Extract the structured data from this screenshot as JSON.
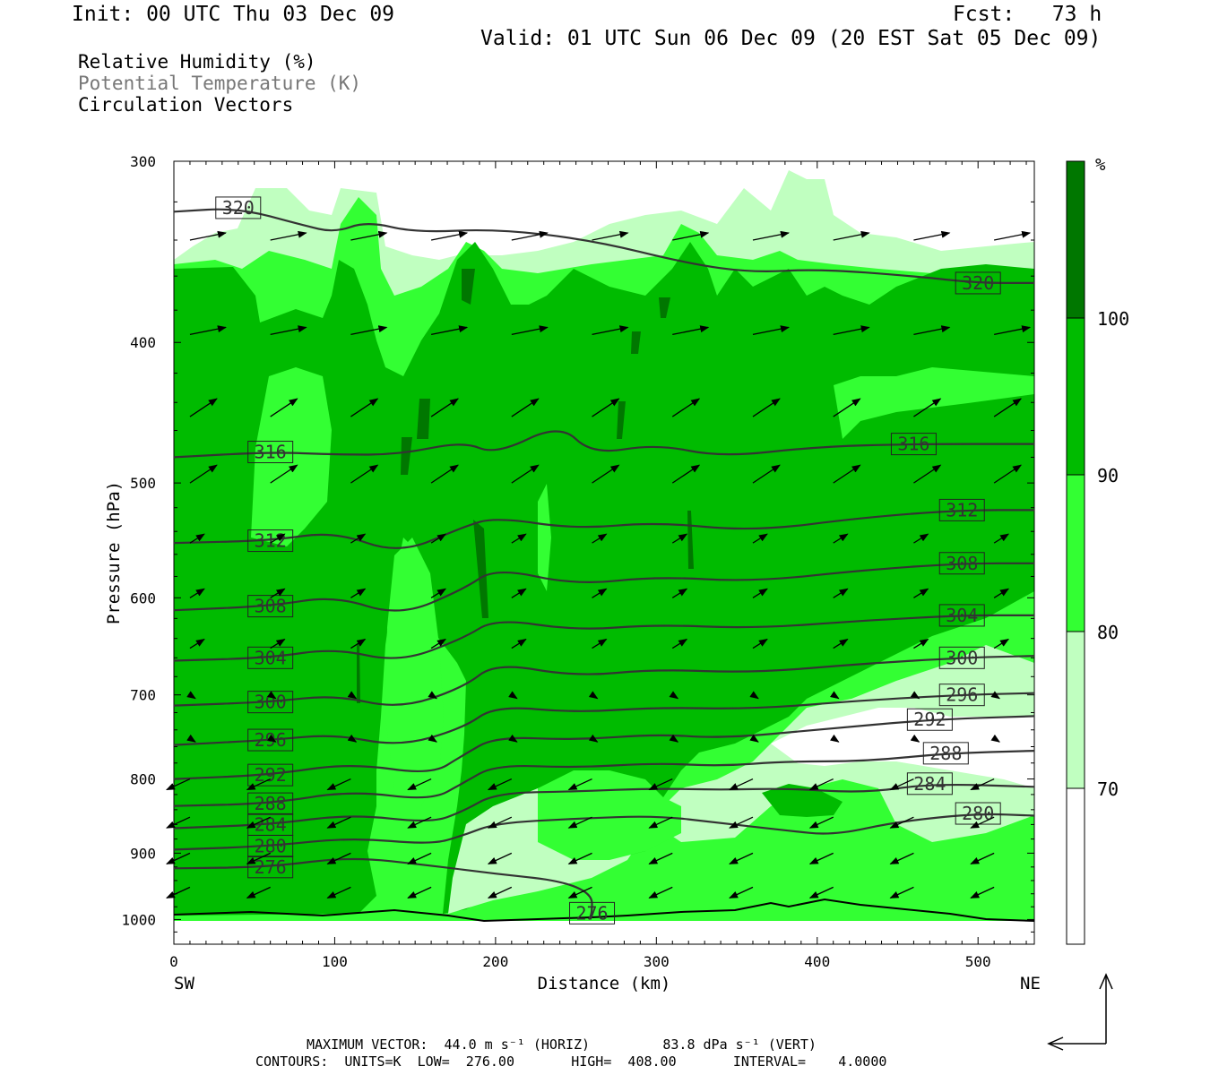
{
  "header": {
    "init": "Init: 00 UTC Thu 03 Dec 09",
    "fcst": "Fcst:   73 h",
    "valid": "Valid: 01 UTC Sun 06 Dec 09 (20 EST Sat 05 Dec 09)"
  },
  "legend": {
    "rh": "Relative Humidity (%)",
    "theta": "Potential Temperature (K)",
    "vectors": "Circulation Vectors"
  },
  "footer": {
    "max_vector": "MAXIMUM VECTOR:  44.0 m s⁻¹ (HORIZ)         83.8 dPa s⁻¹ (VERT)",
    "contours": "CONTOURS:  UNITS=K  LOW=  276.00       HIGH=  408.00       INTERVAL=    4.0000"
  },
  "chart_data": {
    "type": "cross-section",
    "xlabel": "Distance (km)",
    "ylabel": "Pressure (hPa)",
    "x_end_labels": {
      "left": "SW",
      "right": "NE"
    },
    "xlim": [
      0,
      535
    ],
    "ylim": [
      1040,
      300
    ],
    "y_log": true,
    "x_ticks": [
      0,
      100,
      200,
      300,
      400,
      500
    ],
    "y_ticks": [
      300,
      400,
      500,
      600,
      700,
      800,
      900,
      1000
    ],
    "colorbar": {
      "unit": "%",
      "levels": [
        70,
        80,
        90,
        100
      ],
      "colors": [
        "#ffffff",
        "#c0ffc0",
        "#33ff33",
        "#00bb00",
        "#007700"
      ]
    },
    "theta_contours": [
      {
        "value": 276,
        "points": [
          [
            0,
            922
          ],
          [
            60,
            920
          ],
          [
            110,
            905
          ],
          [
            160,
            918
          ],
          [
            200,
            930
          ],
          [
            240,
            940
          ],
          [
            260,
            960
          ],
          [
            260,
            990
          ],
          [
            258,
            1000
          ]
        ]
      },
      {
        "value": 280,
        "points": [
          [
            0,
            895
          ],
          [
            60,
            890
          ],
          [
            110,
            878
          ],
          [
            160,
            888
          ],
          [
            180,
            875
          ],
          [
            200,
            858
          ],
          [
            250,
            852
          ],
          [
            300,
            848
          ],
          [
            340,
            858
          ],
          [
            380,
            868
          ],
          [
            410,
            875
          ],
          [
            450,
            856
          ],
          [
            500,
            845
          ],
          [
            535,
            848
          ]
        ]
      },
      {
        "value": 284,
        "points": [
          [
            0,
            865
          ],
          [
            60,
            860
          ],
          [
            110,
            846
          ],
          [
            160,
            858
          ],
          [
            180,
            842
          ],
          [
            200,
            818
          ],
          [
            250,
            816
          ],
          [
            300,
            812
          ],
          [
            340,
            814
          ],
          [
            380,
            812
          ],
          [
            430,
            818
          ],
          [
            470,
            806
          ],
          [
            535,
            810
          ]
        ]
      },
      {
        "value": 288,
        "points": [
          [
            0,
            835
          ],
          [
            60,
            832
          ],
          [
            110,
            815
          ],
          [
            160,
            828
          ],
          [
            180,
            805
          ],
          [
            200,
            782
          ],
          [
            250,
            786
          ],
          [
            300,
            780
          ],
          [
            340,
            784
          ],
          [
            380,
            778
          ],
          [
            430,
            778
          ],
          [
            480,
            768
          ],
          [
            535,
            765
          ]
        ]
      },
      {
        "value": 292,
        "points": [
          [
            0,
            800
          ],
          [
            60,
            795
          ],
          [
            110,
            780
          ],
          [
            160,
            795
          ],
          [
            180,
            770
          ],
          [
            200,
            748
          ],
          [
            250,
            752
          ],
          [
            300,
            745
          ],
          [
            340,
            750
          ],
          [
            400,
            740
          ],
          [
            470,
            728
          ],
          [
            535,
            724
          ]
        ]
      },
      {
        "value": 296,
        "points": [
          [
            0,
            758
          ],
          [
            60,
            752
          ],
          [
            100,
            745
          ],
          [
            140,
            760
          ],
          [
            180,
            738
          ],
          [
            200,
            712
          ],
          [
            250,
            720
          ],
          [
            300,
            714
          ],
          [
            360,
            716
          ],
          [
            430,
            706
          ],
          [
            490,
            700
          ],
          [
            535,
            698
          ]
        ]
      },
      {
        "value": 300,
        "points": [
          [
            0,
            712
          ],
          [
            60,
            708
          ],
          [
            100,
            700
          ],
          [
            140,
            716
          ],
          [
            180,
            692
          ],
          [
            200,
            665
          ],
          [
            250,
            680
          ],
          [
            300,
            672
          ],
          [
            360,
            676
          ],
          [
            430,
            666
          ],
          [
            490,
            660
          ],
          [
            535,
            658
          ]
        ]
      },
      {
        "value": 304,
        "points": [
          [
            0,
            663
          ],
          [
            60,
            660
          ],
          [
            100,
            650
          ],
          [
            140,
            665
          ],
          [
            180,
            640
          ],
          [
            200,
            620
          ],
          [
            250,
            632
          ],
          [
            300,
            626
          ],
          [
            360,
            630
          ],
          [
            430,
            622
          ],
          [
            490,
            617
          ],
          [
            535,
            617
          ]
        ]
      },
      {
        "value": 308,
        "points": [
          [
            0,
            612
          ],
          [
            60,
            608
          ],
          [
            100,
            598
          ],
          [
            140,
            618
          ],
          [
            180,
            592
          ],
          [
            200,
            572
          ],
          [
            250,
            588
          ],
          [
            300,
            580
          ],
          [
            360,
            585
          ],
          [
            430,
            574
          ],
          [
            490,
            568
          ],
          [
            535,
            568
          ]
        ]
      },
      {
        "value": 312,
        "points": [
          [
            0,
            550
          ],
          [
            60,
            548
          ],
          [
            100,
            540
          ],
          [
            140,
            560
          ],
          [
            180,
            536
          ],
          [
            200,
            528
          ],
          [
            250,
            538
          ],
          [
            300,
            532
          ],
          [
            360,
            540
          ],
          [
            430,
            528
          ],
          [
            490,
            522
          ],
          [
            535,
            522
          ]
        ]
      },
      {
        "value": 316,
        "points": [
          [
            0,
            480
          ],
          [
            60,
            476
          ],
          [
            100,
            478
          ],
          [
            140,
            478
          ],
          [
            180,
            468
          ],
          [
            200,
            478
          ],
          [
            240,
            455
          ],
          [
            260,
            478
          ],
          [
            300,
            470
          ],
          [
            340,
            480
          ],
          [
            400,
            472
          ],
          [
            460,
            470
          ],
          [
            535,
            470
          ]
        ]
      },
      {
        "value": 320,
        "points": [
          [
            0,
            325
          ],
          [
            40,
            323
          ],
          [
            80,
            332
          ],
          [
            100,
            336
          ],
          [
            120,
            330
          ],
          [
            150,
            336
          ],
          [
            200,
            334
          ],
          [
            260,
            340
          ],
          [
            320,
            353
          ],
          [
            360,
            358
          ],
          [
            400,
            356
          ],
          [
            460,
            360
          ],
          [
            500,
            364
          ],
          [
            535,
            364
          ]
        ]
      }
    ]
  }
}
